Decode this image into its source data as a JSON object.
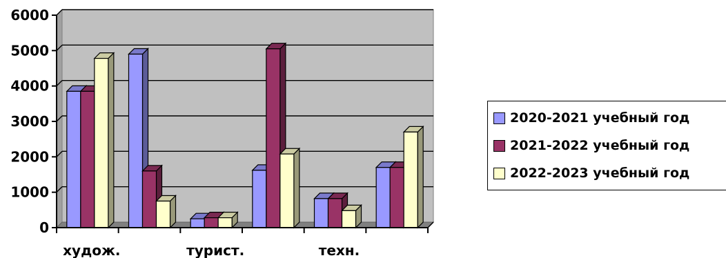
{
  "chart_data": {
    "type": "bar",
    "categories": [
      "худож.",
      "",
      "турист.",
      "",
      "техн.",
      ""
    ],
    "series": [
      {
        "name": "2020-2021 учебный год",
        "values": [
          3850,
          4900,
          250,
          1620,
          820,
          1700
        ],
        "color": "#9999ff"
      },
      {
        "name": "2021-2022 учебный год",
        "values": [
          3850,
          1600,
          280,
          5050,
          820,
          1700
        ],
        "color": "#993366"
      },
      {
        "name": "2022-2023 учебный год",
        "values": [
          4780,
          750,
          280,
          2080,
          480,
          2700
        ],
        "color": "#ffffcc"
      }
    ],
    "y_ticks": [
      "0",
      "1000",
      "2000",
      "3000",
      "4000",
      "5000",
      "6000"
    ],
    "ylim": [
      0,
      6000
    ],
    "grid": true,
    "legend_position": "right",
    "plot_background": "#c0c0c0"
  }
}
